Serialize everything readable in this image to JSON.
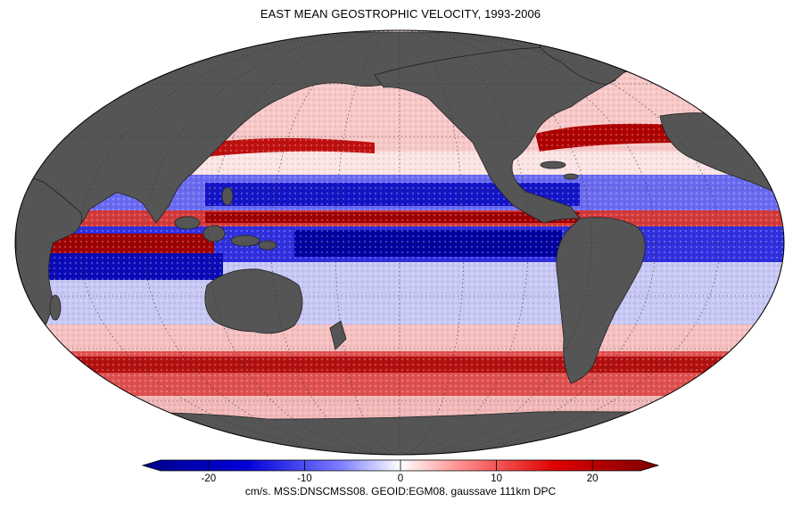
{
  "title": "EAST MEAN GEOSTROPHIC VELOCITY, 1993-2006",
  "caption": "cm/s. MSS:DNSCMSS08. GEOID:EGM08. gaussave 111km DPC",
  "colorbar": {
    "min": -25,
    "max": 25,
    "ticks": [
      {
        "value": -20,
        "label": "-20"
      },
      {
        "value": -10,
        "label": "-10"
      },
      {
        "value": 0,
        "label": "0"
      },
      {
        "value": 10,
        "label": "10"
      },
      {
        "value": 20,
        "label": "20"
      }
    ],
    "colors": {
      "negative_strong": "#00009e",
      "negative_mid": "#3a3aff",
      "neutral": "#ffffff",
      "positive_mid": "#ff3a3a",
      "positive_strong": "#8b0000"
    }
  },
  "map": {
    "projection": "mollweide",
    "land_color": "#555555",
    "graticule": "dotted"
  }
}
